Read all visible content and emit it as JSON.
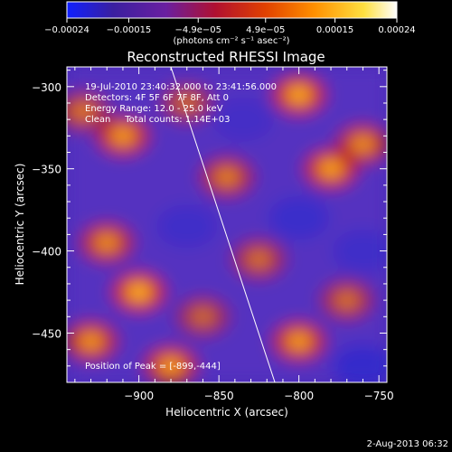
{
  "chart_data": {
    "type": "heatmap",
    "title": "Reconstructed RHESSI Image",
    "xlabel": "Heliocentric X (arcsec)",
    "ylabel": "Heliocentric Y (arcsec)",
    "xlim": [
      -945,
      -745
    ],
    "ylim": [
      -480,
      -288
    ],
    "x_ticks": [
      -900,
      -850,
      -800,
      -750
    ],
    "y_ticks": [
      -300,
      -350,
      -400,
      -450
    ],
    "x_tick_labels": [
      "−900",
      "−850",
      "−800",
      "−750"
    ],
    "y_tick_labels": [
      "−300",
      "−350",
      "−400",
      "−450"
    ],
    "colorbar": {
      "min": -0.00024,
      "max": 0.00024,
      "ticks": [
        -0.00024,
        -0.00015,
        -4.9e-05,
        4.9e-05,
        0.00015,
        0.00024
      ],
      "tick_labels": [
        "−0.00024",
        "−0.00015",
        "−4.9e−05",
        "4.9e−05",
        "0.00015",
        "0.00024"
      ],
      "unit_label": "(photons cm⁻² s⁻¹ asec⁻²)",
      "colors": [
        "#1020ff",
        "#3a1fa0",
        "#6a1fa0",
        "#b01030",
        "#e04000",
        "#ff9000",
        "#ffe040",
        "#ffffff"
      ]
    },
    "annotations": {
      "line1": "19-Jul-2010 23:40:32.000 to 23:41:56.000",
      "line2": "Detectors: 4F 5F 6F 7F 8F, Att 0",
      "line3": "Energy Range: 12.0 - 25.0 keV",
      "line4": "Clean     Total counts: 1.14E+03",
      "peak": "Position of Peak = [-899,-444]"
    },
    "limb_line": [
      {
        "x": -880,
        "y": -288
      },
      {
        "x": -815,
        "y": -480
      }
    ],
    "bright_sources": [
      {
        "x": -910,
        "y": -330,
        "intensity": 0.8
      },
      {
        "x": -800,
        "y": -305,
        "intensity": 0.9
      },
      {
        "x": -780,
        "y": -350,
        "intensity": 0.85
      },
      {
        "x": -760,
        "y": -335,
        "intensity": 0.7
      },
      {
        "x": -845,
        "y": -355,
        "intensity": 0.6
      },
      {
        "x": -900,
        "y": -425,
        "intensity": 0.95
      },
      {
        "x": -920,
        "y": -395,
        "intensity": 0.7
      },
      {
        "x": -930,
        "y": -455,
        "intensity": 0.75
      },
      {
        "x": -880,
        "y": -470,
        "intensity": 0.8
      },
      {
        "x": -800,
        "y": -455,
        "intensity": 0.8
      },
      {
        "x": -825,
        "y": -405,
        "intensity": 0.5
      },
      {
        "x": -770,
        "y": -430,
        "intensity": 0.5
      },
      {
        "x": -870,
        "y": -310,
        "intensity": 0.45
      },
      {
        "x": -935,
        "y": -315,
        "intensity": 0.55
      },
      {
        "x": -860,
        "y": -440,
        "intensity": 0.45
      }
    ],
    "dark_regions": [
      {
        "x": -800,
        "y": -380,
        "intensity": 0.6
      },
      {
        "x": -870,
        "y": -385,
        "intensity": 0.5
      },
      {
        "x": -760,
        "y": -470,
        "intensity": 0.7
      },
      {
        "x": -835,
        "y": -320,
        "intensity": 0.4
      },
      {
        "x": -760,
        "y": -400,
        "intensity": 0.5
      }
    ]
  },
  "footer": {
    "timestamp": "2-Aug-2013 06:32"
  }
}
